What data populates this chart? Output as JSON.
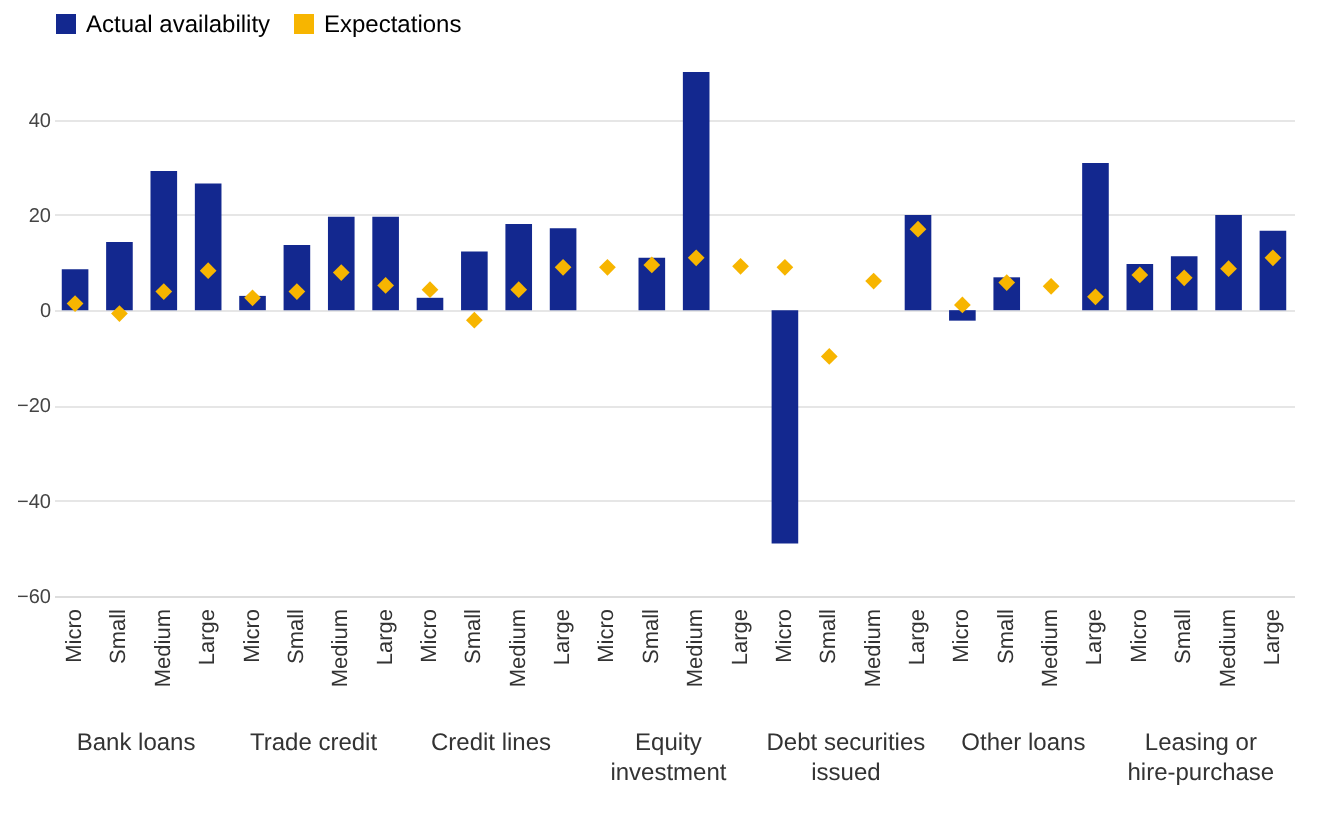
{
  "chart_data": {
    "type": "bar",
    "categories": [
      "Micro",
      "Small",
      "Medium",
      "Large",
      "Micro",
      "Small",
      "Medium",
      "Large",
      "Micro",
      "Small",
      "Medium",
      "Large",
      "Micro",
      "Small",
      "Medium",
      "Large",
      "Micro",
      "Small",
      "Medium",
      "Large",
      "Micro",
      "Small",
      "Medium",
      "Large",
      "Micro",
      "Small",
      "Medium",
      "Large"
    ],
    "series": [
      {
        "name": "Actual availability",
        "color": "#13288f",
        "values": [
          8.6,
          14.3,
          29.2,
          26.6,
          3.0,
          13.7,
          19.6,
          19.6,
          2.6,
          12.3,
          18.1,
          17.2,
          null,
          11.0,
          50,
          null,
          -49.0,
          null,
          null,
          20.0,
          -2.2,
          6.9,
          null,
          30.9,
          9.7,
          11.3,
          20.0,
          16.7
        ]
      },
      {
        "name": "Expectations",
        "type": "scatter",
        "color": "#f7b500",
        "values": [
          1.4,
          -0.7,
          3.9,
          8.3,
          2.6,
          3.9,
          7.9,
          5.2,
          4.3,
          -2.1,
          4.3,
          9.0,
          9.0,
          9.5,
          11.0,
          9.2,
          9.0,
          -9.7,
          6.1,
          17.0,
          1.1,
          5.8,
          5.0,
          2.8,
          7.4,
          6.8,
          8.7,
          11.0
        ]
      }
    ],
    "annotations": [
      "Bank loans",
      "Trade credit",
      "Credit lines",
      "Equity investment",
      "Debt securities issued",
      "Other loans",
      "Leasing or hire-purchase"
    ],
    "ylim": [
      -60,
      50
    ],
    "yticks": [
      -60,
      -40,
      -20,
      0,
      20,
      40
    ],
    "grid": "y",
    "legend": "top",
    "marker": "diamond"
  }
}
